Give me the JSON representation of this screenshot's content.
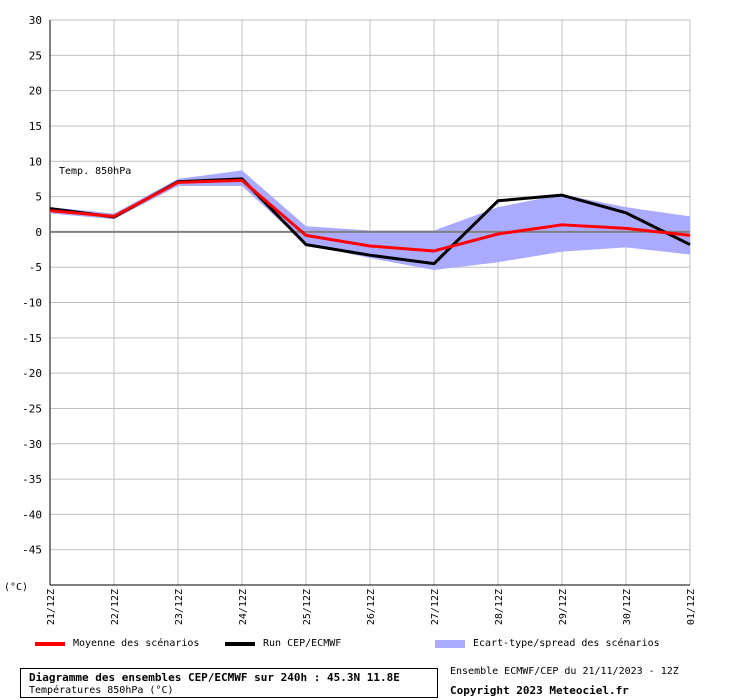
{
  "chart_data": {
    "type": "line",
    "annotation": "Temp. 850hPa",
    "yunit_label": "(°C)",
    "x": [
      "21/12Z",
      "22/12Z",
      "23/12Z",
      "24/12Z",
      "25/12Z",
      "26/12Z",
      "27/12Z",
      "28/12Z",
      "29/12Z",
      "30/12Z",
      "01/12Z"
    ],
    "ylim": [
      -50,
      30
    ],
    "yticks": [
      30,
      25,
      20,
      15,
      10,
      5,
      0,
      -5,
      -10,
      -15,
      -20,
      -25,
      -30,
      -35,
      -40,
      -45
    ],
    "grid": true,
    "series": [
      {
        "name": "Moyenne des scénarios",
        "color": "#ff0000",
        "values": [
          3.0,
          2.2,
          7.0,
          7.3,
          -0.5,
          -2.0,
          -2.7,
          -0.3,
          1.0,
          0.5,
          -0.5
        ]
      },
      {
        "name": "Run CEP/ECMWF",
        "color": "#000000",
        "values": [
          3.3,
          2.1,
          7.1,
          7.5,
          -1.8,
          -3.3,
          -4.5,
          4.4,
          5.2,
          2.7,
          -1.8
        ]
      }
    ],
    "spread": {
      "name": "Ecart-type/spread des scénarios",
      "color": "#aaaaff",
      "upper": [
        3.5,
        2.6,
        7.5,
        8.7,
        0.8,
        0.2,
        0.2,
        3.5,
        5.3,
        3.5,
        2.2
      ],
      "lower": [
        2.6,
        1.8,
        6.5,
        6.5,
        -1.8,
        -3.7,
        -5.4,
        -4.3,
        -2.8,
        -2.2,
        -3.2
      ]
    }
  },
  "legend": {
    "mean_label": "Moyenne des scénarios",
    "run_label": "Run CEP/ECMWF",
    "spread_label": "Ecart-type/spread des scénarios"
  },
  "footer": {
    "title": "Diagramme des ensembles CEP/ECMWF sur 240h : 45.3N 11.8E",
    "subtitle": "Températures 850hPa (°C)",
    "run_info": "Ensemble ECMWF/CEP du 21/11/2023 - 12Z",
    "copyright": "Copyright 2023 Meteociel.fr"
  },
  "colors": {
    "mean": "#ff0000",
    "run": "#000000",
    "spread": "#aaaaff",
    "grid": "#c0c0c0"
  }
}
